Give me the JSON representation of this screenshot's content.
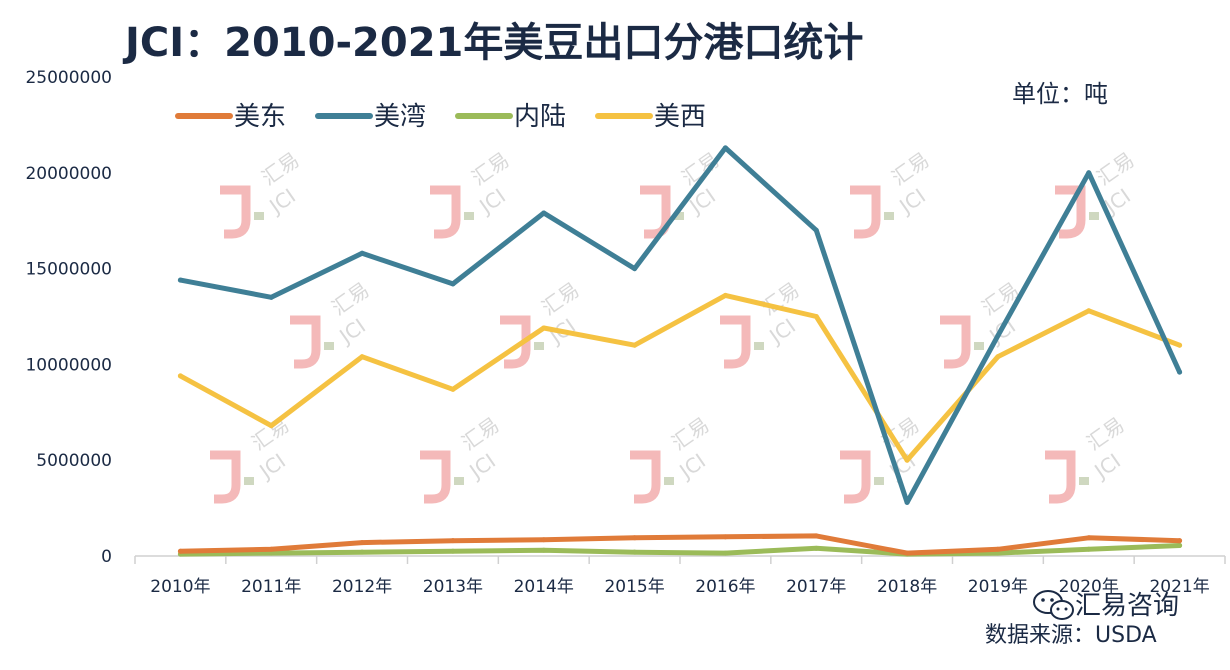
{
  "title": "JCI：2010-2021年美豆出口分港口统计",
  "unit_label": "单位：吨",
  "source_label": "数据来源：USDA",
  "brand": "汇易咨询",
  "watermark_text": "汇易",
  "watermark_sub": "JCI",
  "chart_data": {
    "type": "line",
    "title": "JCI：2010-2021年美豆出口分港口统计",
    "xlabel": "",
    "ylabel": "",
    "categories": [
      "2010年",
      "2011年",
      "2012年",
      "2013年",
      "2014年",
      "2015年",
      "2016年",
      "2017年",
      "2018年",
      "2019年",
      "2020年",
      "2021年"
    ],
    "ylim": [
      0,
      25000000
    ],
    "yticks": [
      0,
      5000000,
      10000000,
      15000000,
      20000000,
      25000000
    ],
    "ytick_labels": [
      "0",
      "5000000",
      "10000000",
      "15000000",
      "20000000",
      "25000000"
    ],
    "grid": false,
    "legend_position": "top-left",
    "series": [
      {
        "name": "美东",
        "color": "#e07b39",
        "values": [
          250000,
          350000,
          700000,
          800000,
          850000,
          950000,
          1000000,
          1050000,
          150000,
          350000,
          950000,
          800000
        ]
      },
      {
        "name": "美湾",
        "color": "#3f7f96",
        "values": [
          14400000,
          13500000,
          15800000,
          14200000,
          17900000,
          15000000,
          21300000,
          17000000,
          2800000,
          11500000,
          20000000,
          9600000
        ]
      },
      {
        "name": "内陆",
        "color": "#9bbb59",
        "values": [
          100000,
          150000,
          200000,
          250000,
          300000,
          200000,
          150000,
          400000,
          100000,
          150000,
          350000,
          550000
        ]
      },
      {
        "name": "美西",
        "color": "#f5c242",
        "values": [
          9400000,
          6800000,
          10400000,
          8700000,
          11900000,
          11000000,
          13600000,
          12500000,
          5000000,
          10400000,
          12800000,
          11000000
        ]
      }
    ]
  }
}
